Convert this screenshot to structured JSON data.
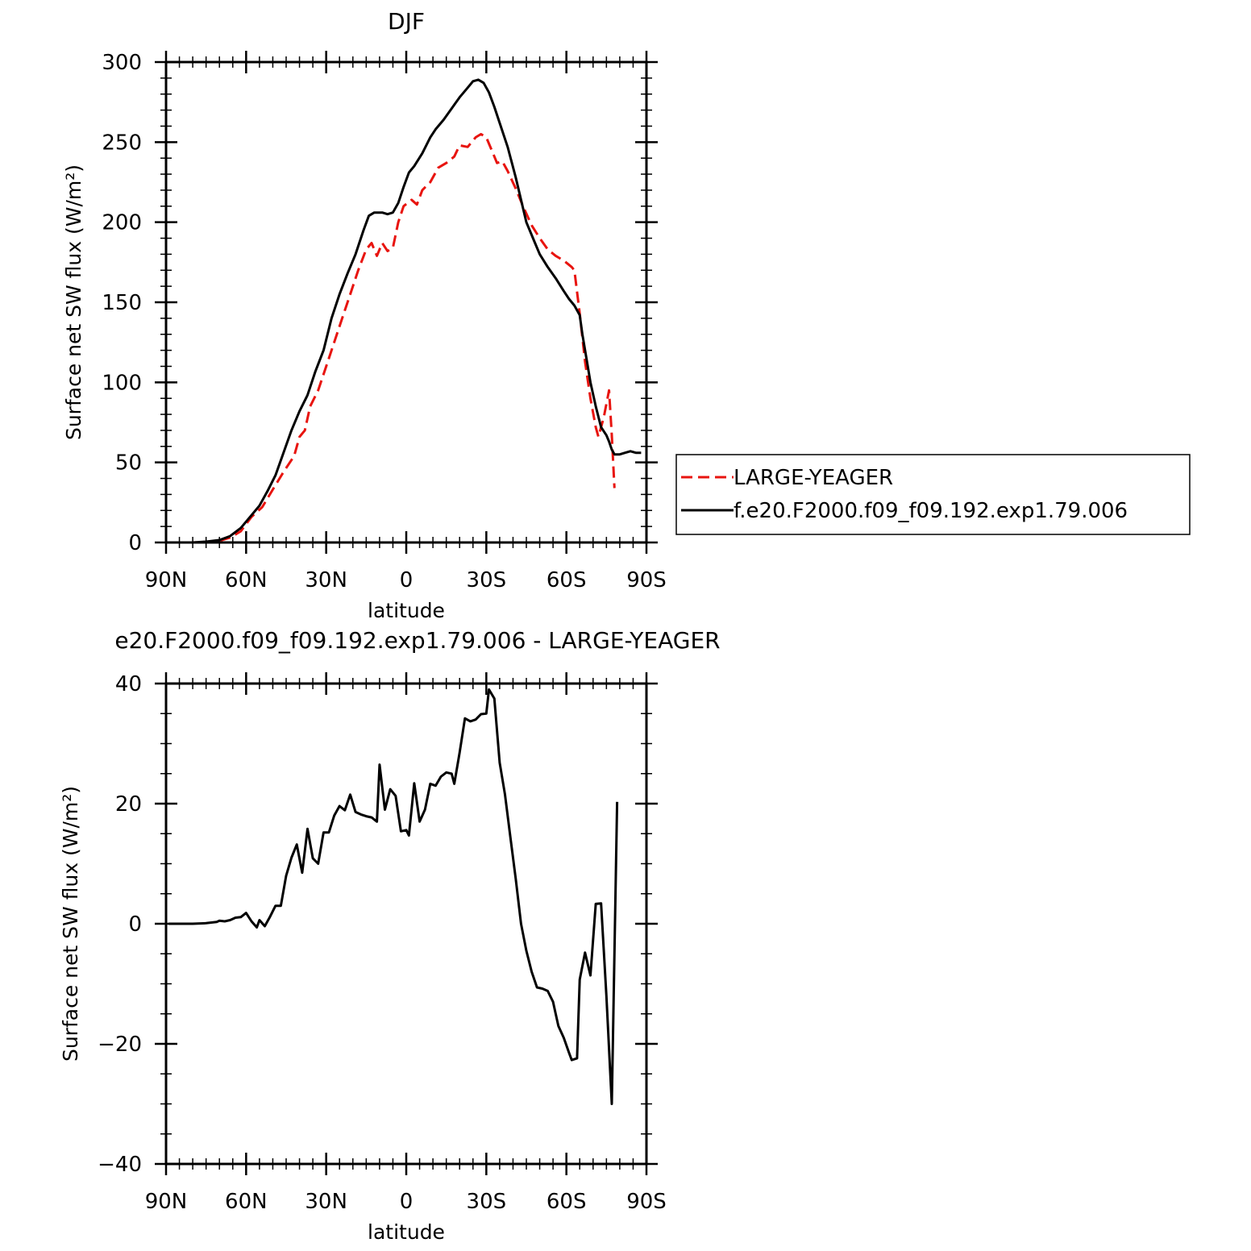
{
  "chart_data": [
    {
      "type": "line",
      "title": "DJF",
      "xlabel": "latitude",
      "ylabel": "Surface net SW flux (W/m²)",
      "xlim": [
        90,
        -90
      ],
      "ylim": [
        0,
        300
      ],
      "xticks": [
        90,
        60,
        30,
        0,
        -30,
        -60,
        -90
      ],
      "xtick_labels": [
        "90N",
        "60N",
        "30N",
        "0",
        "30S",
        "60S",
        "90S"
      ],
      "yticks": [
        0,
        50,
        100,
        150,
        200,
        250,
        300
      ],
      "ytick_labels": [
        "0",
        "50",
        "100",
        "150",
        "200",
        "250",
        "300"
      ],
      "legend_position": "right",
      "series": [
        {
          "name": "LARGE-YEAGER",
          "color": "#e8140f",
          "dash": "dashed",
          "points": [
            [
              89,
              0
            ],
            [
              85,
              0
            ],
            [
              80,
              0
            ],
            [
              75,
              0.3
            ],
            [
              70,
              1
            ],
            [
              66,
              3
            ],
            [
              62,
              7
            ],
            [
              58,
              16
            ],
            [
              54,
              22
            ],
            [
              50,
              33
            ],
            [
              46,
              44
            ],
            [
              42,
              54
            ],
            [
              40,
              66
            ],
            [
              38,
              70
            ],
            [
              36,
              85
            ],
            [
              33,
              95
            ],
            [
              30,
              110
            ],
            [
              27,
              125
            ],
            [
              24,
              140
            ],
            [
              21,
              155
            ],
            [
              18,
              170
            ],
            [
              15,
              183
            ],
            [
              13,
              187
            ],
            [
              11,
              179
            ],
            [
              9,
              187
            ],
            [
              7,
              182
            ],
            [
              5,
              184
            ],
            [
              3,
              200
            ],
            [
              1,
              210
            ],
            [
              -2,
              214
            ],
            [
              -4,
              211
            ],
            [
              -6,
              220
            ],
            [
              -9,
              225
            ],
            [
              -12,
              234
            ],
            [
              -15,
              237
            ],
            [
              -18,
              241
            ],
            [
              -20,
              248
            ],
            [
              -23,
              247
            ],
            [
              -26,
              253
            ],
            [
              -28,
              255
            ],
            [
              -30,
              253
            ],
            [
              -32,
              245
            ],
            [
              -34,
              237
            ],
            [
              -36,
              238
            ],
            [
              -38,
              232
            ],
            [
              -41,
              221
            ],
            [
              -44,
              209
            ],
            [
              -47,
              198
            ],
            [
              -50,
              190
            ],
            [
              -53,
              183
            ],
            [
              -56,
              179
            ],
            [
              -59,
              176
            ],
            [
              -62,
              172
            ],
            [
              -63,
              170
            ],
            [
              -65,
              143
            ],
            [
              -67,
              113
            ],
            [
              -69,
              90
            ],
            [
              -71,
              72
            ],
            [
              -72,
              66
            ],
            [
              -74,
              78
            ],
            [
              -76,
              95
            ],
            [
              -77,
              67
            ],
            [
              -78,
              34
            ]
          ]
        },
        {
          "name": "f.e20.F2000.f09_f09.192.exp1.79.006",
          "color": "#000000",
          "dash": "solid",
          "points": [
            [
              89,
              0
            ],
            [
              85,
              0
            ],
            [
              80,
              0
            ],
            [
              75,
              0.5
            ],
            [
              70,
              1.5
            ],
            [
              66,
              4
            ],
            [
              62,
              9
            ],
            [
              58,
              17
            ],
            [
              55,
              23
            ],
            [
              52,
              32
            ],
            [
              49,
              42
            ],
            [
              46,
              56
            ],
            [
              43,
              70
            ],
            [
              40,
              82
            ],
            [
              37,
              92
            ],
            [
              34,
              107
            ],
            [
              31,
              120
            ],
            [
              28,
              140
            ],
            [
              25,
              155
            ],
            [
              22,
              168
            ],
            [
              19,
              180
            ],
            [
              16,
              195
            ],
            [
              14,
              204
            ],
            [
              12,
              206
            ],
            [
              9,
              206
            ],
            [
              7,
              205
            ],
            [
              5,
              206
            ],
            [
              3,
              212
            ],
            [
              1,
              222
            ],
            [
              -1,
              231
            ],
            [
              -3,
              235
            ],
            [
              -6,
              243
            ],
            [
              -9,
              253
            ],
            [
              -11,
              258
            ],
            [
              -14,
              264
            ],
            [
              -17,
              271
            ],
            [
              -20,
              278
            ],
            [
              -23,
              284
            ],
            [
              -25,
              288
            ],
            [
              -27,
              289
            ],
            [
              -29,
              287
            ],
            [
              -31,
              281
            ],
            [
              -33,
              272
            ],
            [
              -35,
              262
            ],
            [
              -38,
              247
            ],
            [
              -41,
              228
            ],
            [
              -43,
              214
            ],
            [
              -45,
              200
            ],
            [
              -48,
              188
            ],
            [
              -50,
              180
            ],
            [
              -53,
              172
            ],
            [
              -56,
              165
            ],
            [
              -59,
              157
            ],
            [
              -61,
              152
            ],
            [
              -63,
              148
            ],
            [
              -65,
              142
            ],
            [
              -66,
              130
            ],
            [
              -68,
              110
            ],
            [
              -69,
              100
            ],
            [
              -71,
              85
            ],
            [
              -73,
              72
            ],
            [
              -75,
              67
            ],
            [
              -76,
              63
            ],
            [
              -77,
              58
            ],
            [
              -78,
              55
            ],
            [
              -80,
              55
            ],
            [
              -82,
              56
            ],
            [
              -84,
              57
            ],
            [
              -86,
              56
            ],
            [
              -88,
              56
            ]
          ]
        }
      ]
    },
    {
      "type": "line",
      "title": "e20.F2000.f09_f09.192.exp1.79.006 - LARGE-YEAGER",
      "xlabel": "latitude",
      "ylabel": "Surface net SW flux (W/m²)",
      "xlim": [
        90,
        -90
      ],
      "ylim": [
        -40,
        40
      ],
      "xticks": [
        90,
        60,
        30,
        0,
        -30,
        -60,
        -90
      ],
      "xtick_labels": [
        "90N",
        "60N",
        "30N",
        "0",
        "30S",
        "60S",
        "90S"
      ],
      "yticks": [
        -40,
        -20,
        0,
        20,
        40
      ],
      "ytick_labels": [
        "−40",
        "−20",
        "0",
        "20",
        "40"
      ],
      "series": [
        {
          "color": "#000000",
          "dash": "solid",
          "points": [
            [
              89,
              0
            ],
            [
              85,
              0
            ],
            [
              80,
              0
            ],
            [
              75,
              0.1
            ],
            [
              71,
              0.3
            ],
            [
              70,
              0.5
            ],
            [
              68,
              0.4
            ],
            [
              66,
              0.6
            ],
            [
              64,
              1
            ],
            [
              62,
              1.1
            ],
            [
              60,
              1.8
            ],
            [
              58,
              0.4
            ],
            [
              56,
              -0.6
            ],
            [
              55,
              0.6
            ],
            [
              53,
              -0.4
            ],
            [
              51,
              1.2
            ],
            [
              49,
              3
            ],
            [
              47,
              3
            ],
            [
              45,
              8
            ],
            [
              43,
              11
            ],
            [
              41,
              13.2
            ],
            [
              39,
              8.5
            ],
            [
              37,
              15.8
            ],
            [
              35,
              10.9
            ],
            [
              33,
              10
            ],
            [
              31,
              15.2
            ],
            [
              29,
              15.2
            ],
            [
              27,
              18
            ],
            [
              25,
              19.6
            ],
            [
              23,
              18.9
            ],
            [
              21,
              21.5
            ],
            [
              19,
              18.6
            ],
            [
              17,
              18.2
            ],
            [
              15,
              17.9
            ],
            [
              13,
              17.7
            ],
            [
              11,
              17
            ],
            [
              10,
              26.5
            ],
            [
              8,
              19
            ],
            [
              6,
              22.4
            ],
            [
              4,
              21.3
            ],
            [
              2,
              15.4
            ],
            [
              0,
              15.6
            ],
            [
              -1,
              14.7
            ],
            [
              -3,
              23.4
            ],
            [
              -5,
              17
            ],
            [
              -7,
              19
            ],
            [
              -9,
              23.3
            ],
            [
              -11,
              23
            ],
            [
              -13,
              24.5
            ],
            [
              -15,
              25.2
            ],
            [
              -17,
              25
            ],
            [
              -18,
              23.3
            ],
            [
              -20,
              28.5
            ],
            [
              -22,
              34.2
            ],
            [
              -24,
              33.7
            ],
            [
              -26,
              34
            ],
            [
              -28,
              34.9
            ],
            [
              -30,
              35
            ],
            [
              -31,
              39
            ],
            [
              -33,
              37.5
            ],
            [
              -35,
              26.8
            ],
            [
              -37,
              21.5
            ],
            [
              -39,
              14.5
            ],
            [
              -41,
              7.5
            ],
            [
              -43,
              0
            ],
            [
              -45,
              -4.5
            ],
            [
              -47,
              -8
            ],
            [
              -49,
              -10.6
            ],
            [
              -51,
              -10.8
            ],
            [
              -53,
              -11.2
            ],
            [
              -55,
              -13
            ],
            [
              -56,
              -15
            ],
            [
              -57,
              -17
            ],
            [
              -59,
              -19
            ],
            [
              -61,
              -21.5
            ],
            [
              -62,
              -22.7
            ],
            [
              -64,
              -22.4
            ],
            [
              -65,
              -9.3
            ],
            [
              -67,
              -4.8
            ],
            [
              -69,
              -8.6
            ],
            [
              -71,
              3.3
            ],
            [
              -73,
              3.4
            ],
            [
              -75,
              -12
            ],
            [
              -77,
              -30
            ],
            [
              -79,
              20.3
            ]
          ]
        }
      ]
    }
  ]
}
